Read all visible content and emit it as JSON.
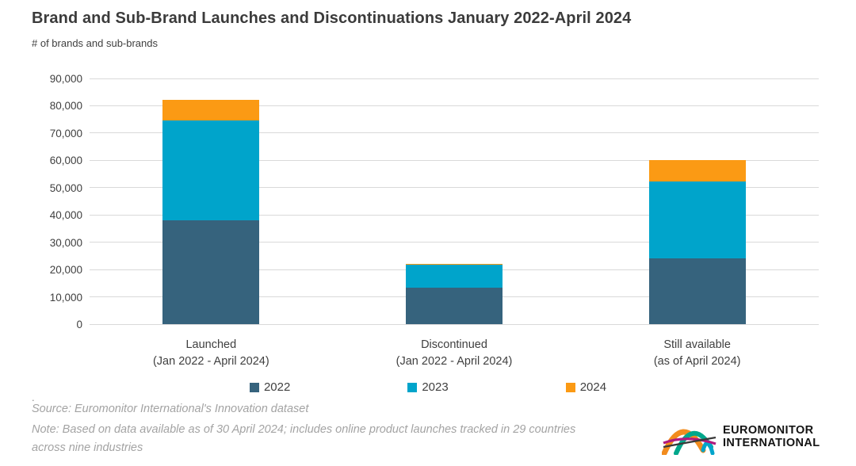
{
  "title": "Brand and Sub-Brand Launches and Discontinuations January 2022-April 2024",
  "subtitle": "# of brands and sub-brands",
  "chart_data": {
    "type": "bar",
    "stacked": true,
    "title": "Brand and Sub-Brand Launches and Discontinuations January 2022-April 2024",
    "ylabel": "# of brands and sub-brands",
    "xlabel": "",
    "ylim": [
      0,
      90000
    ],
    "ytick_step": 10000,
    "grid": true,
    "legend_position": "bottom",
    "categories": [
      {
        "line1": "Launched",
        "line2": "(Jan 2022 - April 2024)"
      },
      {
        "line1": "Discontinued",
        "line2": "(Jan 2022 - April 2024)"
      },
      {
        "line1": "Still available",
        "line2": "(as of April 2024)"
      }
    ],
    "series": [
      {
        "name": "2022",
        "color": "#36637D",
        "values": [
          38000,
          13400,
          24000
        ]
      },
      {
        "name": "2023",
        "color": "#00A4CB",
        "values": [
          36500,
          8400,
          28300
        ]
      },
      {
        "name": "2024",
        "color": "#FB9A14",
        "values": [
          7700,
          400,
          7800
        ]
      }
    ]
  },
  "footer": {
    "dot": ".",
    "source": "Source: Euromonitor International's Innovation dataset",
    "note": "Note: Based on data available as of 30 April 2024; includes online product launches tracked in 29 countries across nine industries"
  },
  "logo": {
    "line1": "EUROMONITOR",
    "line2": "INTERNATIONAL",
    "colors": {
      "orange": "#F28C1E",
      "teal": "#00A78B",
      "cyan": "#00A4CB",
      "magenta": "#B0197E",
      "dark": "#3a3a3a"
    }
  }
}
